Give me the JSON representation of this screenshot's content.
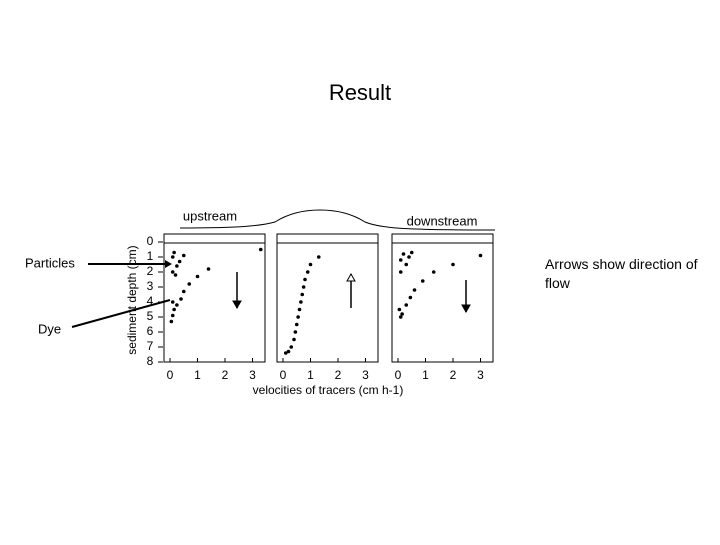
{
  "title": "Result",
  "annotations": {
    "particles": "Particles",
    "dye": "Dye",
    "arrows": "Arrows show direction of flow"
  },
  "figure": {
    "top_labels": {
      "upstream": "upstream",
      "downstream": "downstream"
    },
    "y_label": "sediment depth (cm)",
    "x_label": "velocities of tracers (cm h-1)",
    "yticks": [
      0,
      1,
      2,
      3,
      4,
      5,
      6,
      7,
      8
    ],
    "xticks": [
      0,
      1,
      2,
      3
    ],
    "panels": [
      {
        "points": [
          [
            0.1,
            1
          ],
          [
            0.15,
            0.7
          ],
          [
            0.25,
            1.6
          ],
          [
            0.35,
            1.3
          ],
          [
            0.5,
            0.9
          ],
          [
            0.1,
            2
          ],
          [
            0.2,
            2.2
          ],
          [
            0.1,
            4
          ],
          [
            0.15,
            4.5
          ],
          [
            0.1,
            4.9
          ],
          [
            0.05,
            5.3
          ],
          [
            0.25,
            4.2
          ],
          [
            0.4,
            3.8
          ],
          [
            0.5,
            3.3
          ],
          [
            0.7,
            2.8
          ],
          [
            1.0,
            2.3
          ],
          [
            1.4,
            1.8
          ],
          [
            3.3,
            0.5
          ]
        ]
      },
      {
        "points": [
          [
            0.1,
            7.4
          ],
          [
            0.2,
            7.3
          ],
          [
            0.3,
            7
          ],
          [
            0.4,
            6.5
          ],
          [
            0.45,
            6
          ],
          [
            0.5,
            5.5
          ],
          [
            0.55,
            5
          ],
          [
            0.6,
            4.5
          ],
          [
            0.65,
            4
          ],
          [
            0.7,
            3.5
          ],
          [
            0.75,
            3
          ],
          [
            0.8,
            2.5
          ],
          [
            0.9,
            2
          ],
          [
            1,
            1.5
          ],
          [
            1.3,
            1
          ]
        ]
      },
      {
        "points": [
          [
            0.1,
            1.2
          ],
          [
            0.2,
            0.8
          ],
          [
            0.3,
            1.5
          ],
          [
            0.4,
            1
          ],
          [
            0.5,
            0.7
          ],
          [
            0.1,
            2
          ],
          [
            0.05,
            4.5
          ],
          [
            0.1,
            5
          ],
          [
            0.15,
            4.8
          ],
          [
            0.3,
            4.2
          ],
          [
            0.45,
            3.7
          ],
          [
            0.6,
            3.2
          ],
          [
            0.9,
            2.6
          ],
          [
            1.3,
            2
          ],
          [
            2,
            1.5
          ],
          [
            3,
            0.9
          ]
        ]
      }
    ]
  }
}
